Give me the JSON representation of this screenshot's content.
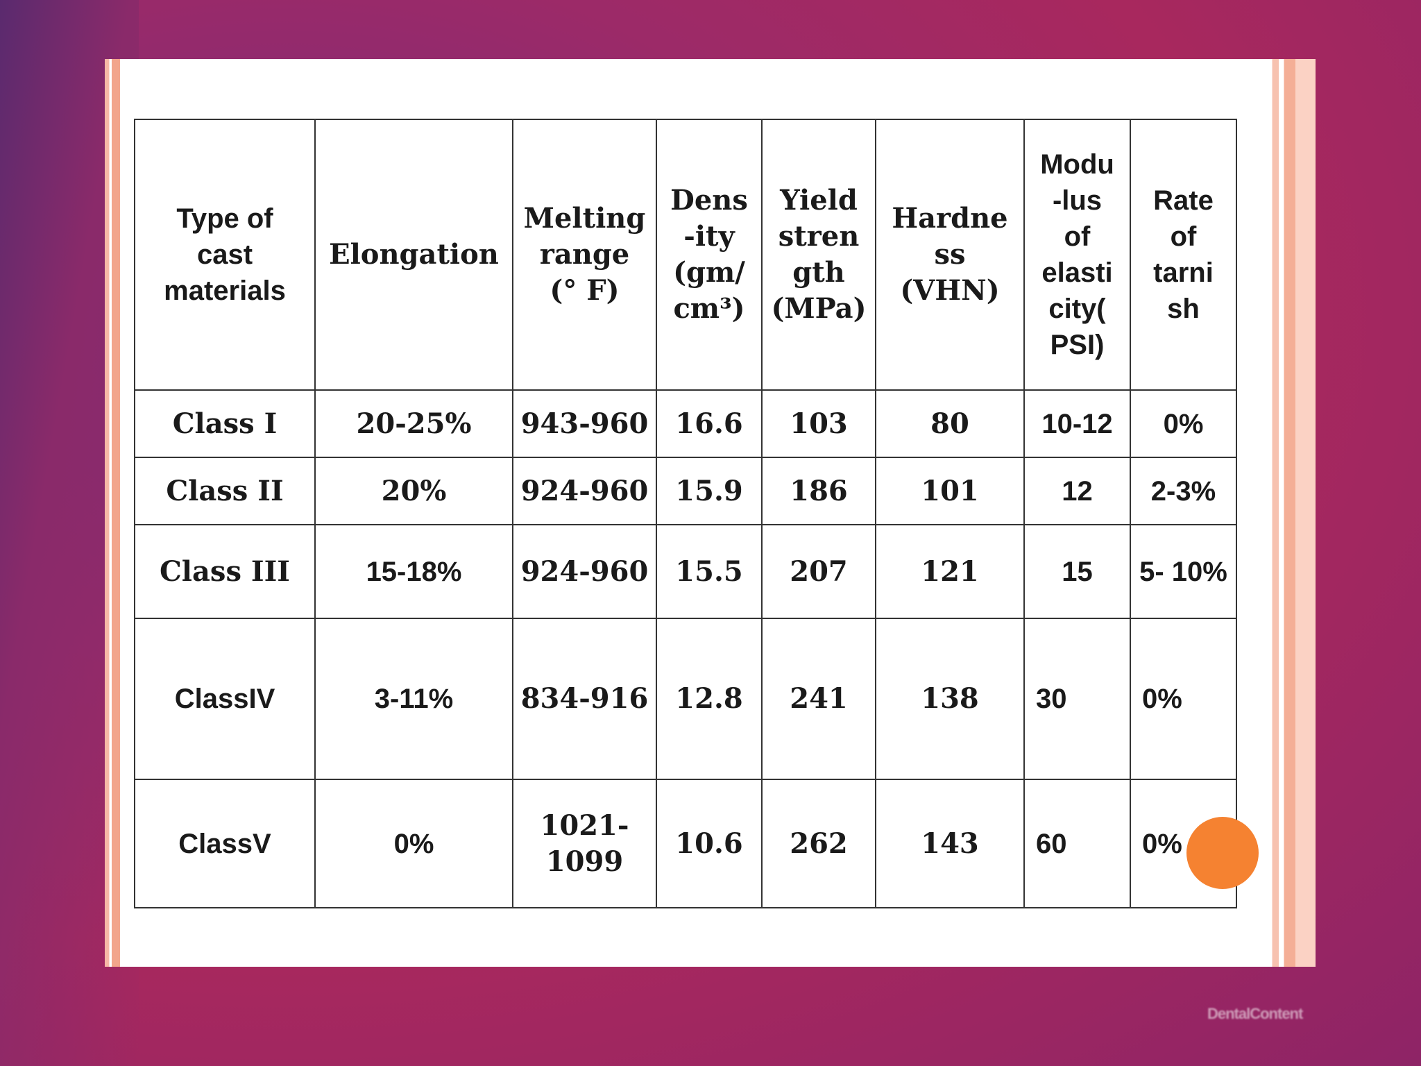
{
  "table": {
    "headers": [
      "Type of cast materials",
      "Elongation",
      "Melting range (° F)",
      "Dens -ity (gm/ cm³)",
      "Yield stren gth (MPa)",
      "Hardne ss (VHN)",
      "Modu -lus of elasti city( PSI)",
      "Rate of tarni sh"
    ],
    "header_lines": {
      "type": [
        "Type of",
        "cast",
        "materials"
      ],
      "elongation": [
        "Elongation"
      ],
      "melting": [
        "Melting",
        "range",
        "(° F)"
      ],
      "density": [
        "Dens",
        "-ity",
        "(gm/",
        "cm³)"
      ],
      "yield": [
        "Yield",
        "stren",
        "gth",
        "(MPa)"
      ],
      "hardness": [
        "Hardne",
        "ss",
        "(VHN)"
      ],
      "modulus": [
        "Modu",
        "-lus",
        "of",
        "elasti",
        "city(",
        "PSI)"
      ],
      "tarnish": [
        "Rate",
        "of",
        "tarni",
        "sh"
      ]
    },
    "rows": [
      {
        "type": "Class I",
        "elongation": "20-25%",
        "melting": "943-960",
        "density": "16.6",
        "yield": "103",
        "hardness": "80",
        "modulus": "10-12",
        "tarnish": "0%"
      },
      {
        "type": "Class II",
        "elongation": "20%",
        "melting": "924-960",
        "density": "15.9",
        "yield": "186",
        "hardness": "101",
        "modulus": "12",
        "tarnish": "2-3%"
      },
      {
        "type": "Class III",
        "elongation": "15-18%",
        "melting": "924-960",
        "density": "15.5",
        "yield": "207",
        "hardness": "121",
        "modulus": "15",
        "tarnish": "5- 10%"
      },
      {
        "type": "ClassIV",
        "elongation": "3-11%",
        "melting": "834-916",
        "density": "12.8",
        "yield": "241",
        "hardness": "138",
        "modulus": "30",
        "tarnish": "0%"
      },
      {
        "type": "ClassV",
        "elongation": "0%",
        "melting": "1021- 1099",
        "density": "10.6",
        "yield": "262",
        "hardness": "143",
        "modulus": "60",
        "tarnish": "0%"
      }
    ]
  },
  "watermark": "DentalContent",
  "colors": {
    "background": "#a8285e",
    "accent_stripe": "#f4ae96",
    "dot": "#f58231"
  }
}
